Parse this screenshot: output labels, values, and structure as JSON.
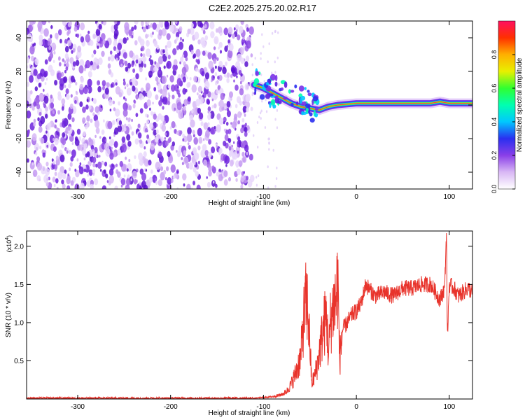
{
  "title": "C2E2.2025.275.20.02.R17",
  "colors": {
    "snr_line": "#e8332b",
    "speckle": "#7a2ee6",
    "background": "#ffffff",
    "colorbar_stops": [
      "#ffffff",
      "#d9b8f5",
      "#8a3fe8",
      "#2a2ff0",
      "#00c8ff",
      "#00ffb0",
      "#30ff30",
      "#e8f000",
      "#ffb000",
      "#ff3000",
      "#ff1060"
    ]
  },
  "chart_data": [
    {
      "type": "heatmap",
      "name": "spectrogram",
      "xlabel": "Height of straight line (km)",
      "ylabel": "Frequency (Hz)",
      "xlim": [
        -355,
        125
      ],
      "ylim": [
        -50,
        50
      ],
      "xticks": [
        -300,
        -200,
        -100,
        0,
        100
      ],
      "xtick_labels": [
        "-300",
        "-200",
        "-100",
        "0",
        "100"
      ],
      "yticks": [
        -40,
        -20,
        0,
        20,
        40
      ],
      "ytick_labels": [
        "-40",
        "-20",
        "0",
        "20",
        "40"
      ],
      "noise_region_x": [
        -355,
        -112
      ],
      "band_track": [
        {
          "x": -110,
          "y": 12
        },
        {
          "x": -100,
          "y": 10
        },
        {
          "x": -90,
          "y": 7
        },
        {
          "x": -80,
          "y": 4
        },
        {
          "x": -70,
          "y": 1
        },
        {
          "x": -60,
          "y": -1
        },
        {
          "x": -50,
          "y": -2
        },
        {
          "x": -40,
          "y": -3
        },
        {
          "x": -30,
          "y": -1
        },
        {
          "x": -20,
          "y": 0
        },
        {
          "x": 0,
          "y": 1
        },
        {
          "x": 20,
          "y": 1
        },
        {
          "x": 40,
          "y": 1
        },
        {
          "x": 60,
          "y": 1
        },
        {
          "x": 80,
          "y": 1
        },
        {
          "x": 90,
          "y": 2
        },
        {
          "x": 100,
          "y": 1
        },
        {
          "x": 125,
          "y": 1
        }
      ],
      "colorbar": {
        "label": "Normalized spectral amplitude",
        "range": [
          0,
          1
        ],
        "ticks": [
          0.0,
          0.2,
          0.4,
          0.6,
          0.8
        ],
        "tick_labels": [
          "0.0",
          "0.2",
          "0.4",
          "0.6",
          "0.8"
        ]
      }
    },
    {
      "type": "line",
      "name": "snr",
      "xlabel": "Height of straight line (km)",
      "ylabel": "SNR (10 * v/v)",
      "multiplier_label": "(x10",
      "multiplier_exp": "4",
      "xlim": [
        -355,
        125
      ],
      "ylim": [
        0,
        2.2
      ],
      "xticks": [
        -300,
        -200,
        -100,
        0,
        100
      ],
      "xtick_labels": [
        "-300",
        "-200",
        "-100",
        "0",
        "100"
      ],
      "yticks": [
        0.5,
        1.0,
        1.5,
        2.0
      ],
      "ytick_labels": [
        "0.5",
        "1.0",
        "1.5",
        "2.0"
      ],
      "series": [
        {
          "name": "SNR",
          "x": [
            -355,
            -300,
            -250,
            -200,
            -150,
            -110,
            -100,
            -90,
            -80,
            -75,
            -70,
            -65,
            -60,
            -57,
            -54,
            -52,
            -50,
            -48,
            -45,
            -42,
            -40,
            -38,
            -35,
            -32,
            -30,
            -28,
            -25,
            -22,
            -20,
            -18,
            -15,
            -10,
            -5,
            0,
            5,
            10,
            20,
            30,
            40,
            50,
            60,
            70,
            80,
            85,
            90,
            95,
            97,
            98,
            100,
            105,
            110,
            115,
            120,
            125
          ],
          "values": [
            0.01,
            0.01,
            0.01,
            0.01,
            0.01,
            0.01,
            0.02,
            0.03,
            0.06,
            0.1,
            0.2,
            0.35,
            0.55,
            1.0,
            1.3,
            1.15,
            0.7,
            0.2,
            0.3,
            0.45,
            0.6,
            0.75,
            0.95,
            1.1,
            0.55,
            1.0,
            1.2,
            1.3,
            1.6,
            0.5,
            0.9,
            1.0,
            1.1,
            1.15,
            1.25,
            1.5,
            1.35,
            1.4,
            1.35,
            1.45,
            1.45,
            1.5,
            1.5,
            1.4,
            1.3,
            1.45,
            2.2,
            0.8,
            1.5,
            1.45,
            1.35,
            1.4,
            1.45,
            1.4
          ]
        }
      ]
    }
  ]
}
